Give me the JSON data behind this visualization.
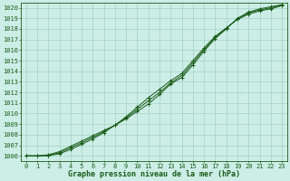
{
  "title": "Graphe pression niveau de la mer (hPa)",
  "bg_color": "#cceee6",
  "line_color": "#1a5c1a",
  "grid_color": "#99ccbb",
  "xlim": [
    -0.5,
    23.5
  ],
  "ylim": [
    1005.5,
    1020.5
  ],
  "yticks": [
    1006,
    1007,
    1008,
    1009,
    1010,
    1011,
    1012,
    1013,
    1014,
    1015,
    1016,
    1017,
    1018,
    1019,
    1020
  ],
  "xticks": [
    0,
    1,
    2,
    3,
    4,
    5,
    6,
    7,
    8,
    9,
    10,
    11,
    12,
    13,
    14,
    15,
    16,
    17,
    18,
    19,
    20,
    21,
    22,
    23
  ],
  "series1": [
    1006.0,
    1006.0,
    1006.1,
    1006.4,
    1006.9,
    1007.4,
    1007.9,
    1008.4,
    1008.9,
    1009.5,
    1010.2,
    1010.9,
    1011.8,
    1012.8,
    1013.4,
    1014.6,
    1015.9,
    1017.1,
    1018.0,
    1019.0,
    1019.6,
    1019.9,
    1020.1,
    1020.3
  ],
  "series2": [
    1006.0,
    1006.0,
    1006.0,
    1006.2,
    1006.6,
    1007.1,
    1007.6,
    1008.2,
    1008.9,
    1009.7,
    1010.6,
    1011.5,
    1012.3,
    1013.1,
    1013.8,
    1015.0,
    1016.2,
    1017.3,
    1018.1,
    1018.9,
    1019.4,
    1019.7,
    1019.9,
    1020.2
  ],
  "series3": [
    1006.0,
    1006.0,
    1006.05,
    1006.3,
    1006.75,
    1007.25,
    1007.75,
    1008.3,
    1008.9,
    1009.6,
    1010.4,
    1011.2,
    1012.0,
    1012.9,
    1013.6,
    1014.8,
    1016.05,
    1017.2,
    1018.05,
    1018.95,
    1019.5,
    1019.8,
    1020.0,
    1020.25
  ],
  "marker_style": "+",
  "marker_size": 3,
  "linewidth": 0.7,
  "title_fontsize": 6,
  "tick_fontsize": 5,
  "figsize": [
    3.2,
    2.0
  ],
  "dpi": 100
}
